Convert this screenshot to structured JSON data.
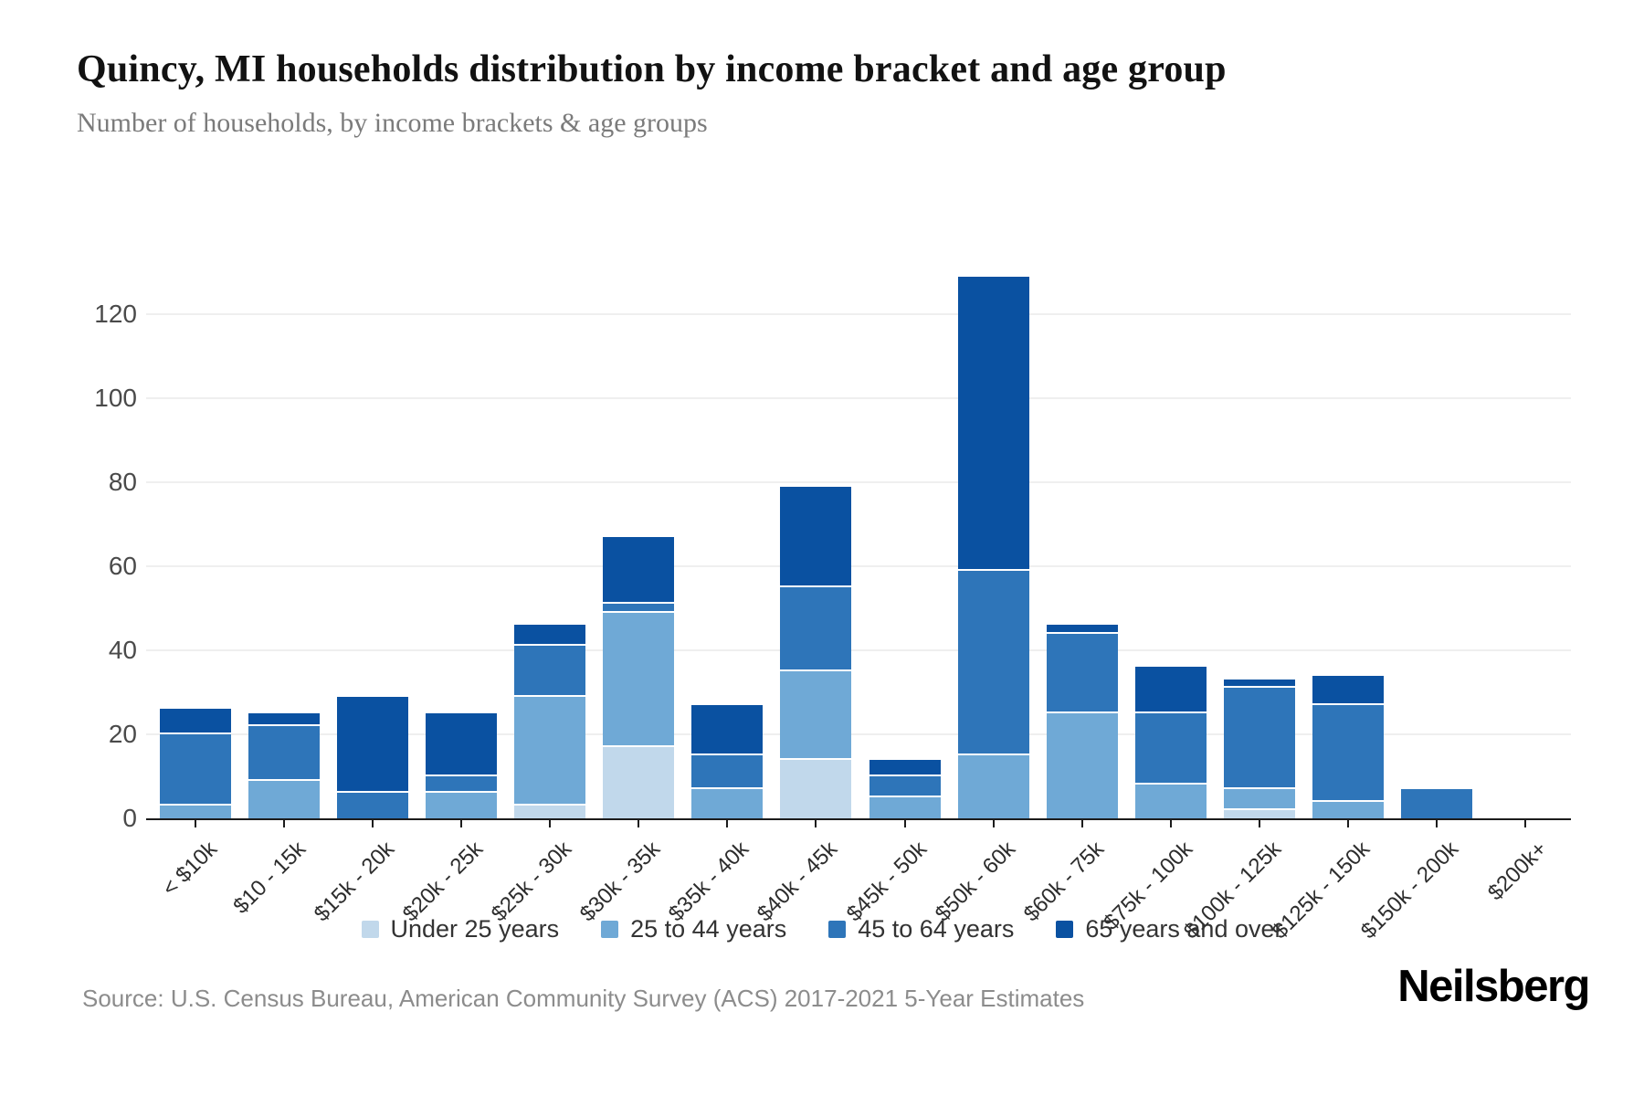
{
  "header": {
    "title": "Quincy, MI households distribution by income bracket and age group",
    "subtitle": "Number of households, by income brackets & age groups"
  },
  "chart_data": {
    "type": "bar",
    "stacked": true,
    "title": "Quincy, MI households distribution by income bracket and age group",
    "xlabel": "",
    "ylabel": "Number of households",
    "categories": [
      "< $10k",
      "$10 - 15k",
      "$15k - 20k",
      "$20k - 25k",
      "$25k - 30k",
      "$30k - 35k",
      "$35k - 40k",
      "$40k - 45k",
      "$45k - 50k",
      "$50k - 60k",
      "$60k - 75k",
      "$75k - 100k",
      "$100k - 125k",
      "$125k - 150k",
      "$150k - 200k",
      "$200k+"
    ],
    "series": [
      {
        "name": "Under 25 years",
        "color": "#c1d8eb",
        "values": [
          0,
          0,
          0,
          0,
          3,
          17,
          0,
          14,
          0,
          0,
          0,
          0,
          2,
          0,
          0,
          0
        ]
      },
      {
        "name": "25 to 44 years",
        "color": "#6fa9d6",
        "values": [
          3,
          9,
          0,
          6,
          26,
          32,
          7,
          21,
          5,
          15,
          25,
          8,
          5,
          4,
          0,
          0
        ]
      },
      {
        "name": "45 to 64 years",
        "color": "#2e75b9",
        "values": [
          17,
          13,
          6,
          4,
          12,
          2,
          8,
          20,
          5,
          44,
          19,
          17,
          24,
          23,
          7,
          0
        ]
      },
      {
        "name": "65 years and over",
        "color": "#0a51a1",
        "values": [
          6,
          3,
          23,
          15,
          5,
          16,
          12,
          24,
          4,
          70,
          2,
          11,
          2,
          7,
          0,
          0
        ]
      }
    ],
    "totals": [
      26,
      25,
      29,
      25,
      46,
      67,
      27,
      79,
      14,
      129,
      46,
      36,
      33,
      34,
      7,
      0
    ],
    "yticks": [
      0,
      20,
      40,
      60,
      80,
      100,
      120
    ],
    "ylim": [
      0,
      130
    ],
    "grid": "horizontal",
    "legend_position": "bottom"
  },
  "footer": {
    "source": "Source: U.S. Census Bureau, American Community Survey (ACS) 2017-2021 5-Year Estimates",
    "brand": "Neilsberg"
  }
}
